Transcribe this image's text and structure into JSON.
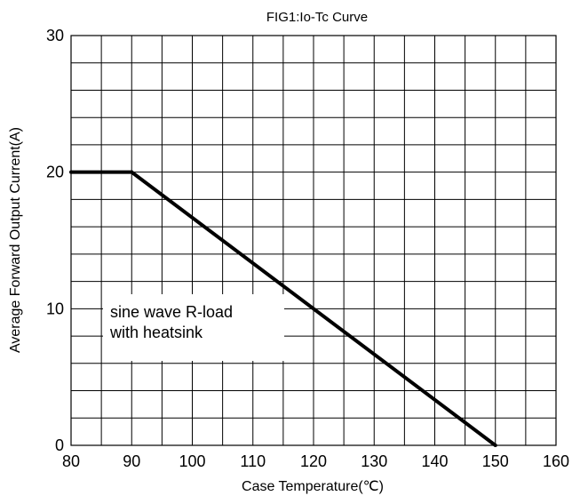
{
  "chart_data": {
    "type": "line",
    "title": "FIG1:Io-Tc Curve",
    "xlabel": "Case Temperature(℃)",
    "ylabel": "Average Forward Output Current(A)",
    "xlim": [
      80,
      160
    ],
    "ylim": [
      0,
      30
    ],
    "x_ticks": [
      80,
      90,
      100,
      110,
      120,
      130,
      140,
      150,
      160
    ],
    "x_tick_labels": [
      "80",
      "90",
      "100",
      "110",
      "120",
      "130",
      "140",
      "150",
      "160"
    ],
    "y_ticks": [
      0,
      10,
      20,
      30
    ],
    "y_tick_labels": [
      "0",
      "10",
      "20",
      "30"
    ],
    "grid": true,
    "grid_x_step": 5,
    "grid_y_step": 2,
    "series": [
      {
        "x": [
          80,
          90,
          150
        ],
        "y": [
          20,
          20,
          0
        ],
        "color": "#000000"
      }
    ],
    "annotations": [
      "sine wave R-load",
      "with heatsink"
    ]
  }
}
